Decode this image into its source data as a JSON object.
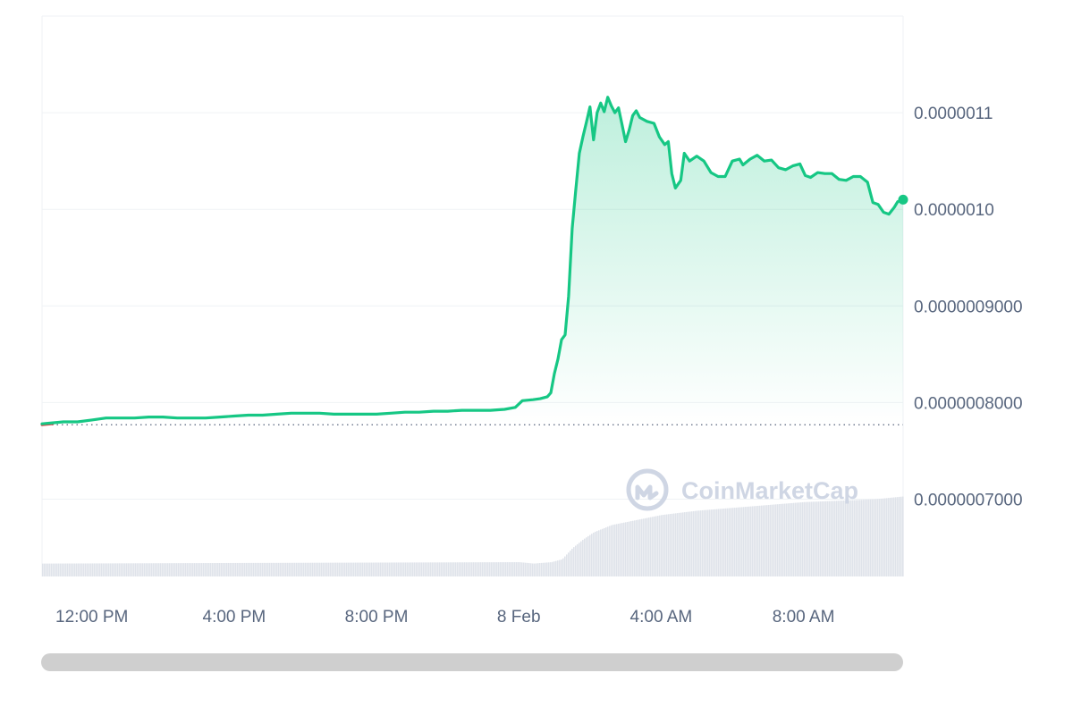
{
  "colors": {
    "line_up": "#16c784",
    "line_down": "#ea3943",
    "grid": "#eff2f5",
    "axis_text": "#58667e",
    "volume": "#dfe3ea",
    "scrollbar": "#cfcfcf",
    "watermark": "#cfd6e4"
  },
  "watermark": {
    "text": "CoinMarketCap",
    "icon": "coinmarketcap-logo-icon"
  },
  "chart_data": {
    "type": "area",
    "y_axis_position": "right",
    "ylim": [
      6.2e-07,
      1.2e-06
    ],
    "y_ticks": [
      {
        "value": 1.1e-06,
        "label": "0.0000011"
      },
      {
        "value": 1e-06,
        "label": "0.0000010"
      },
      {
        "value": 9e-07,
        "label": "0.0000009000"
      },
      {
        "value": 8e-07,
        "label": "0.0000008000"
      },
      {
        "value": 7e-07,
        "label": "0.0000007000"
      }
    ],
    "xlim": [
      -1.4,
      22.8
    ],
    "x_ticks": [
      {
        "value": 0,
        "label": "12:00 PM"
      },
      {
        "value": 4,
        "label": "4:00 PM"
      },
      {
        "value": 8,
        "label": "8:00 PM"
      },
      {
        "value": 12,
        "label": "8 Feb"
      },
      {
        "value": 16,
        "label": "4:00 AM"
      },
      {
        "value": 20,
        "label": "8:00 AM"
      }
    ],
    "reference_price": 7.77e-07,
    "grid": true,
    "series": [
      {
        "points": [
          [
            -1.4,
            7.78e-07
          ],
          [
            -1.1,
            7.79e-07
          ],
          [
            -0.8,
            7.8e-07
          ],
          [
            -0.4,
            7.8e-07
          ],
          [
            0.0,
            7.82e-07
          ],
          [
            0.4,
            7.84e-07
          ],
          [
            0.8,
            7.84e-07
          ],
          [
            1.2,
            7.84e-07
          ],
          [
            1.6,
            7.85e-07
          ],
          [
            2.0,
            7.85e-07
          ],
          [
            2.4,
            7.84e-07
          ],
          [
            2.8,
            7.84e-07
          ],
          [
            3.2,
            7.84e-07
          ],
          [
            3.6,
            7.85e-07
          ],
          [
            4.0,
            7.86e-07
          ],
          [
            4.4,
            7.87e-07
          ],
          [
            4.8,
            7.87e-07
          ],
          [
            5.2,
            7.88e-07
          ],
          [
            5.6,
            7.89e-07
          ],
          [
            6.0,
            7.89e-07
          ],
          [
            6.4,
            7.89e-07
          ],
          [
            6.8,
            7.88e-07
          ],
          [
            7.2,
            7.88e-07
          ],
          [
            7.6,
            7.88e-07
          ],
          [
            8.0,
            7.88e-07
          ],
          [
            8.4,
            7.89e-07
          ],
          [
            8.8,
            7.9e-07
          ],
          [
            9.2,
            7.9e-07
          ],
          [
            9.6,
            7.91e-07
          ],
          [
            10.0,
            7.91e-07
          ],
          [
            10.4,
            7.92e-07
          ],
          [
            10.8,
            7.92e-07
          ],
          [
            11.2,
            7.92e-07
          ],
          [
            11.6,
            7.93e-07
          ],
          [
            11.9,
            7.95e-07
          ],
          [
            12.1,
            8.02e-07
          ],
          [
            12.4,
            8.03e-07
          ],
          [
            12.6,
            8.04e-07
          ],
          [
            12.8,
            8.06e-07
          ],
          [
            12.9,
            8.1e-07
          ],
          [
            13.0,
            8.3e-07
          ],
          [
            13.1,
            8.45e-07
          ],
          [
            13.2,
            8.65e-07
          ],
          [
            13.3,
            8.7e-07
          ],
          [
            13.4,
            9.1e-07
          ],
          [
            13.5,
            9.8e-07
          ],
          [
            13.6,
            1.02e-06
          ],
          [
            13.7,
            1.058e-06
          ],
          [
            13.8,
            1.075e-06
          ],
          [
            13.9,
            1.09e-06
          ],
          [
            14.0,
            1.106e-06
          ],
          [
            14.1,
            1.072e-06
          ],
          [
            14.2,
            1.1e-06
          ],
          [
            14.3,
            1.11e-06
          ],
          [
            14.4,
            1.101e-06
          ],
          [
            14.5,
            1.116e-06
          ],
          [
            14.6,
            1.107e-06
          ],
          [
            14.7,
            1.1e-06
          ],
          [
            14.8,
            1.105e-06
          ],
          [
            14.9,
            1.088e-06
          ],
          [
            15.0,
            1.07e-06
          ],
          [
            15.1,
            1.082e-06
          ],
          [
            15.2,
            1.097e-06
          ],
          [
            15.3,
            1.102e-06
          ],
          [
            15.4,
            1.095e-06
          ],
          [
            15.6,
            1.091e-06
          ],
          [
            15.8,
            1.089e-06
          ],
          [
            15.95,
            1.075e-06
          ],
          [
            16.1,
            1.067e-06
          ],
          [
            16.2,
            1.07e-06
          ],
          [
            16.3,
            1.037e-06
          ],
          [
            16.4,
            1.022e-06
          ],
          [
            16.55,
            1.03e-06
          ],
          [
            16.65,
            1.058e-06
          ],
          [
            16.8,
            1.05e-06
          ],
          [
            17.0,
            1.055e-06
          ],
          [
            17.2,
            1.05e-06
          ],
          [
            17.4,
            1.038e-06
          ],
          [
            17.6,
            1.034e-06
          ],
          [
            17.8,
            1.034e-06
          ],
          [
            18.0,
            1.05e-06
          ],
          [
            18.2,
            1.052e-06
          ],
          [
            18.3,
            1.046e-06
          ],
          [
            18.5,
            1.052e-06
          ],
          [
            18.7,
            1.056e-06
          ],
          [
            18.9,
            1.05e-06
          ],
          [
            19.1,
            1.051e-06
          ],
          [
            19.3,
            1.043e-06
          ],
          [
            19.5,
            1.041e-06
          ],
          [
            19.7,
            1.045e-06
          ],
          [
            19.9,
            1.047e-06
          ],
          [
            20.05,
            1.035e-06
          ],
          [
            20.2,
            1.033e-06
          ],
          [
            20.4,
            1.038e-06
          ],
          [
            20.6,
            1.037e-06
          ],
          [
            20.8,
            1.037e-06
          ],
          [
            21.0,
            1.031e-06
          ],
          [
            21.2,
            1.03e-06
          ],
          [
            21.4,
            1.034e-06
          ],
          [
            21.6,
            1.034e-06
          ],
          [
            21.8,
            1.028e-06
          ],
          [
            21.95,
            1.007e-06
          ],
          [
            22.1,
            1.005e-06
          ],
          [
            22.25,
            9.97e-07
          ],
          [
            22.4,
            9.95e-07
          ],
          [
            22.55,
            1.002e-06
          ],
          [
            22.65,
            1.008e-06
          ],
          [
            22.8,
            1.01e-06
          ]
        ]
      }
    ],
    "volume": [
      [
        -1.4,
        0.09
      ],
      [
        12.0,
        0.1
      ],
      [
        12.4,
        0.09
      ],
      [
        12.9,
        0.1
      ],
      [
        13.2,
        0.12
      ],
      [
        13.5,
        0.2
      ],
      [
        13.8,
        0.26
      ],
      [
        14.1,
        0.31
      ],
      [
        14.6,
        0.36
      ],
      [
        15.2,
        0.39
      ],
      [
        16.0,
        0.43
      ],
      [
        17.0,
        0.46
      ],
      [
        18.0,
        0.48
      ],
      [
        19.0,
        0.5
      ],
      [
        20.0,
        0.52
      ],
      [
        21.0,
        0.53
      ],
      [
        22.0,
        0.54
      ],
      [
        22.8,
        0.56
      ]
    ]
  }
}
